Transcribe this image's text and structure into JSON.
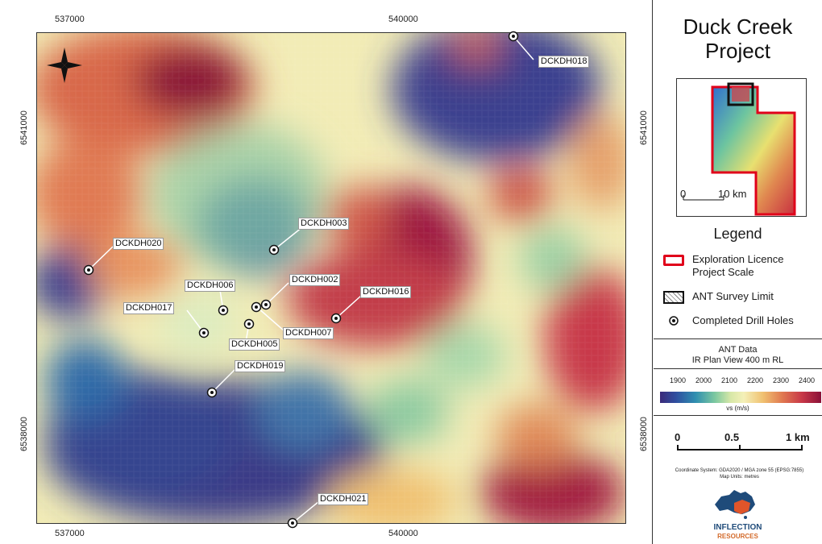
{
  "map": {
    "top_ticks": [
      "537000",
      "540000"
    ],
    "bottom_ticks": [
      "537000",
      "540000"
    ],
    "left_ticks": [
      "6541000",
      "6538000"
    ],
    "right_ticks": [
      "6541000",
      "6538000"
    ],
    "drill_holes": [
      "DCKDH018",
      "DCKDH003",
      "DCKDH020",
      "DCKDH002",
      "DCKDH006",
      "DCKDH016",
      "DCKDH017",
      "DCKDH007",
      "DCKDH005",
      "DCKDH019",
      "DCKDH021"
    ],
    "north_arrow_icon": "north-arrow-icon"
  },
  "panel": {
    "title": "Duck Creek Project",
    "inset_scale_zero": "0",
    "inset_scale_label": "10 km",
    "legend_title": "Legend",
    "legend_items": [
      {
        "label": "Exploration Licence Project Scale",
        "icon": "red-outline-rect-icon",
        "color": "#e0001a"
      },
      {
        "label": "ANT Survey Limit",
        "icon": "hatched-rect-icon"
      },
      {
        "label": "Completed Drill Holes",
        "icon": "drill-hole-dot-icon"
      }
    ],
    "ant_title_line1": "ANT Data",
    "ant_title_line2": "IR Plan View 400 m RL",
    "colorbar_ticks": [
      "1900",
      "2000",
      "2100",
      "2200",
      "2300",
      "2400"
    ],
    "colorbar_unit": "vs (m/s)",
    "scale_labels": [
      "0",
      "0.5",
      "1 km"
    ],
    "coord_system_line1": "Coordinate System: GDA2020 / MGA zone 55 (EPSG:7855)",
    "coord_system_line2": "Map Units: metres",
    "logo_text": "INFLECTION",
    "logo_sub": "RESOURCES"
  }
}
